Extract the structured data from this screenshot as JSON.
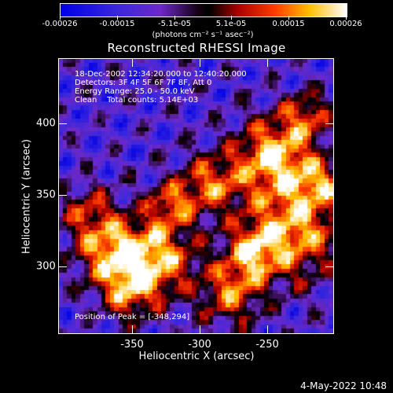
{
  "colorbar": {
    "tick_labels": [
      "-0.00026",
      "-0.00015",
      "-5.1e-05",
      "5.1e-05",
      "0.00015",
      "0.00026"
    ],
    "units_label": "(photons cm⁻² s⁻¹ asec⁻²)"
  },
  "title": "Reconstructed RHESSI Image",
  "info": {
    "line1": "18-Dec-2002 12:34:20.000 to 12:40:20.000",
    "line2": "Detectors: 3F 4F 5F 6F 7F 8F, Att 0",
    "line3": "Energy Range: 25.0 - 50.0 keV",
    "line4": "Clean    Total counts: 5.14E+03",
    "peak": "Position of Peak = [-348,294]"
  },
  "axes": {
    "xlabel": "Heliocentric X (arcsec)",
    "ylabel": "Heliocentric Y (arcsec)",
    "xticks": [
      "-350",
      "-300",
      "-250"
    ],
    "yticks": [
      "400",
      "350",
      "300"
    ]
  },
  "footer": {
    "timestamp": "4-May-2022 10:48"
  },
  "colors": {
    "background": "#000000",
    "foreground": "#ffffff"
  },
  "chart_data": {
    "type": "heatmap",
    "title": "Reconstructed RHESSI Image",
    "xlabel": "Heliocentric X (arcsec)",
    "ylabel": "Heliocentric Y (arcsec)",
    "xlim": [
      -398,
      -212
    ],
    "ylim": [
      253,
      444
    ],
    "xticks": [
      -350,
      -300,
      -250
    ],
    "yticks": [
      300,
      350,
      400
    ],
    "colorbar_range": [
      -0.00026,
      0.00026
    ],
    "peak_position": [
      -348,
      294
    ],
    "colormap": "blue-purple-red-yellow-white"
  }
}
